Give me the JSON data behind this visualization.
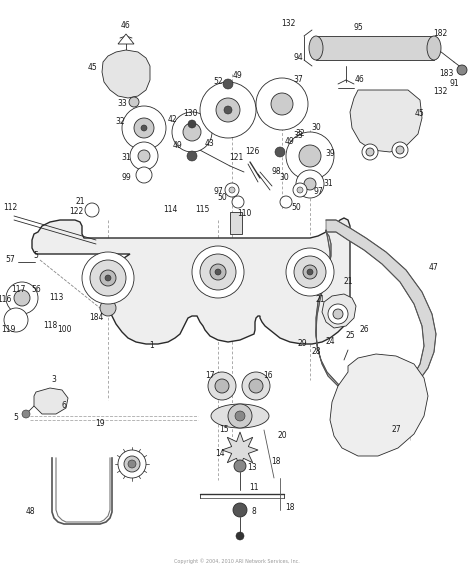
{
  "background": "#ffffff",
  "line_color": "#2a2a2a",
  "label_color": "#1a1a1a",
  "fig_width": 4.74,
  "fig_height": 5.72,
  "dpi": 100,
  "copyright": "Copyright © 2004, 2010 ARI Network Services, Inc."
}
